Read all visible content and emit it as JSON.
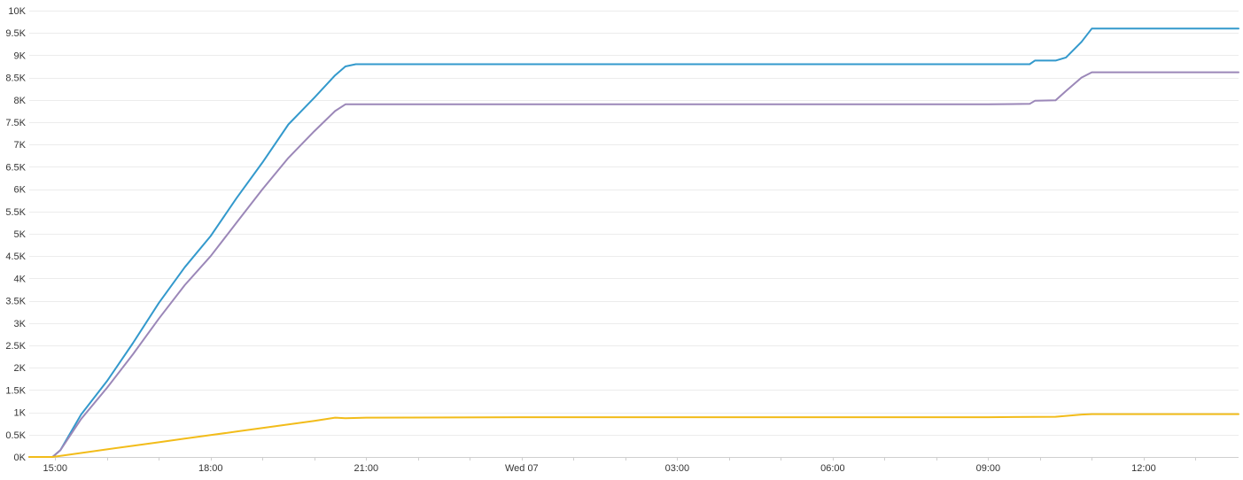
{
  "chart_data": {
    "type": "line",
    "title": "",
    "xlabel": "",
    "ylabel": "",
    "grid": true,
    "legend": "none",
    "ylim": [
      0,
      10000
    ],
    "xlim": [
      14.5,
      37.83
    ],
    "yticks": [
      {
        "value": 0,
        "label": "0K"
      },
      {
        "value": 500,
        "label": "0.5K"
      },
      {
        "value": 1000,
        "label": "1K"
      },
      {
        "value": 1500,
        "label": "1.5K"
      },
      {
        "value": 2000,
        "label": "2K"
      },
      {
        "value": 2500,
        "label": "2.5K"
      },
      {
        "value": 3000,
        "label": "3K"
      },
      {
        "value": 3500,
        "label": "3.5K"
      },
      {
        "value": 4000,
        "label": "4K"
      },
      {
        "value": 4500,
        "label": "4.5K"
      },
      {
        "value": 5000,
        "label": "5K"
      },
      {
        "value": 5500,
        "label": "5.5K"
      },
      {
        "value": 6000,
        "label": "6K"
      },
      {
        "value": 6500,
        "label": "6.5K"
      },
      {
        "value": 7000,
        "label": "7K"
      },
      {
        "value": 7500,
        "label": "7.5K"
      },
      {
        "value": 8000,
        "label": "8K"
      },
      {
        "value": 8500,
        "label": "8.5K"
      },
      {
        "value": 9000,
        "label": "9K"
      },
      {
        "value": 9500,
        "label": "9.5K"
      },
      {
        "value": 10000,
        "label": "10K"
      }
    ],
    "xticks": [
      {
        "value": 15,
        "label": "15:00"
      },
      {
        "value": 18,
        "label": "18:00"
      },
      {
        "value": 21,
        "label": "21:00"
      },
      {
        "value": 24,
        "label": "Wed 07"
      },
      {
        "value": 27,
        "label": "03:00"
      },
      {
        "value": 30,
        "label": "06:00"
      },
      {
        "value": 33,
        "label": "09:00"
      },
      {
        "value": 36,
        "label": "12:00"
      }
    ],
    "series": [
      {
        "color": "#3399cc",
        "x": [
          14.5,
          14.95,
          15.1,
          15.5,
          16.0,
          16.5,
          17.0,
          17.5,
          18.0,
          18.5,
          19.0,
          19.5,
          20.0,
          20.4,
          20.6,
          20.8,
          21.5,
          24.0,
          27.0,
          30.0,
          33.0,
          33.8,
          33.9,
          34.3,
          34.5,
          34.8,
          35.0,
          37.83
        ],
        "values": [
          0,
          0,
          150,
          950,
          1700,
          2550,
          3450,
          4250,
          4950,
          5800,
          6600,
          7450,
          8050,
          8550,
          8750,
          8800,
          8800,
          8800,
          8800,
          8800,
          8800,
          8800,
          8880,
          8880,
          8950,
          9300,
          9600,
          9600
        ]
      },
      {
        "color": "#9b87b8",
        "x": [
          14.5,
          14.95,
          15.1,
          15.5,
          16.0,
          16.5,
          17.0,
          17.5,
          18.0,
          18.5,
          19.0,
          19.5,
          20.0,
          20.4,
          20.6,
          21.0,
          24.0,
          27.0,
          30.0,
          33.0,
          33.8,
          33.9,
          34.3,
          34.5,
          34.8,
          35.0,
          35.5,
          37.83
        ],
        "values": [
          0,
          0,
          150,
          850,
          1550,
          2300,
          3100,
          3850,
          4500,
          5250,
          6000,
          6700,
          7300,
          7750,
          7900,
          7900,
          7900,
          7900,
          7900,
          7900,
          7910,
          7980,
          7990,
          8200,
          8500,
          8620,
          8620,
          8620
        ]
      },
      {
        "color": "#f2bc1a",
        "x": [
          14.5,
          14.95,
          15.5,
          16.0,
          16.5,
          17.0,
          17.5,
          18.0,
          18.5,
          19.0,
          19.5,
          20.0,
          20.4,
          20.6,
          21.0,
          24.0,
          27.0,
          30.0,
          33.0,
          34.3,
          34.8,
          35.0,
          37.83
        ],
        "values": [
          0,
          0,
          90,
          170,
          250,
          330,
          410,
          490,
          570,
          650,
          730,
          810,
          880,
          870,
          880,
          890,
          890,
          890,
          890,
          900,
          950,
          960,
          960
        ]
      }
    ]
  }
}
